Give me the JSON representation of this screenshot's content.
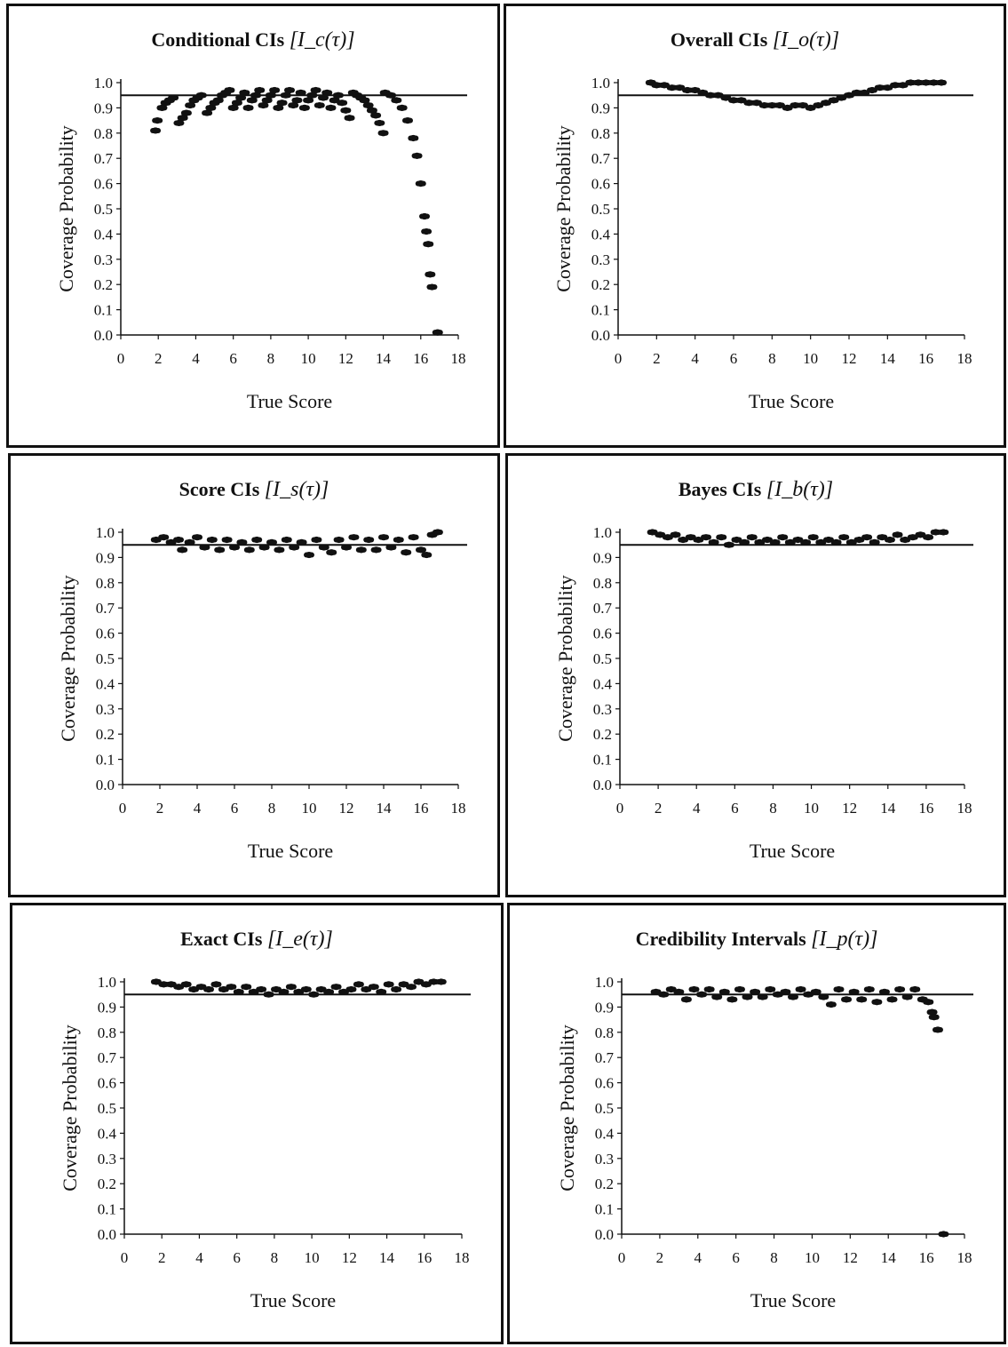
{
  "chart_data": [
    {
      "type": "scatter",
      "title": "Conditional CIs",
      "title_math": "[I_c(τ)]",
      "xlabel": "True Score",
      "ylabel": "Coverage Probability",
      "xlim": [
        0,
        18
      ],
      "ylim": [
        0,
        1
      ],
      "xticks": [
        "0",
        "2",
        "4",
        "6",
        "8",
        "10",
        "12",
        "14",
        "16",
        "18"
      ],
      "yticks": [
        "0.0",
        "0.1",
        "0.2",
        "0.3",
        "0.4",
        "0.5",
        "0.6",
        "0.7",
        "0.8",
        "0.9",
        "1.0"
      ],
      "reference_line": 0.95,
      "grid": false,
      "points": [
        [
          1.85,
          0.81
        ],
        [
          1.95,
          0.85
        ],
        [
          2.2,
          0.9
        ],
        [
          2.4,
          0.92
        ],
        [
          2.6,
          0.93
        ],
        [
          2.8,
          0.94
        ],
        [
          3.1,
          0.84
        ],
        [
          3.3,
          0.86
        ],
        [
          3.5,
          0.88
        ],
        [
          3.7,
          0.91
        ],
        [
          3.9,
          0.93
        ],
        [
          4.1,
          0.94
        ],
        [
          4.3,
          0.95
        ],
        [
          4.6,
          0.88
        ],
        [
          4.8,
          0.9
        ],
        [
          5.0,
          0.92
        ],
        [
          5.2,
          0.93
        ],
        [
          5.4,
          0.95
        ],
        [
          5.6,
          0.96
        ],
        [
          5.8,
          0.97
        ],
        [
          6.0,
          0.9
        ],
        [
          6.2,
          0.92
        ],
        [
          6.4,
          0.94
        ],
        [
          6.6,
          0.96
        ],
        [
          6.8,
          0.9
        ],
        [
          7.0,
          0.93
        ],
        [
          7.2,
          0.95
        ],
        [
          7.4,
          0.97
        ],
        [
          7.6,
          0.91
        ],
        [
          7.8,
          0.93
        ],
        [
          8.0,
          0.95
        ],
        [
          8.2,
          0.97
        ],
        [
          8.4,
          0.9
        ],
        [
          8.6,
          0.92
        ],
        [
          8.8,
          0.95
        ],
        [
          9.0,
          0.97
        ],
        [
          9.2,
          0.91
        ],
        [
          9.4,
          0.93
        ],
        [
          9.6,
          0.96
        ],
        [
          9.8,
          0.9
        ],
        [
          10.0,
          0.93
        ],
        [
          10.2,
          0.95
        ],
        [
          10.4,
          0.97
        ],
        [
          10.6,
          0.91
        ],
        [
          10.8,
          0.94
        ],
        [
          11.0,
          0.96
        ],
        [
          11.2,
          0.9
        ],
        [
          11.4,
          0.93
        ],
        [
          11.6,
          0.95
        ],
        [
          11.8,
          0.92
        ],
        [
          12.0,
          0.89
        ],
        [
          12.2,
          0.86
        ],
        [
          12.4,
          0.96
        ],
        [
          12.6,
          0.95
        ],
        [
          12.8,
          0.94
        ],
        [
          13.0,
          0.93
        ],
        [
          13.2,
          0.91
        ],
        [
          13.4,
          0.89
        ],
        [
          13.6,
          0.87
        ],
        [
          13.8,
          0.84
        ],
        [
          14.0,
          0.8
        ],
        [
          14.1,
          0.96
        ],
        [
          14.4,
          0.95
        ],
        [
          14.7,
          0.93
        ],
        [
          15.0,
          0.9
        ],
        [
          15.3,
          0.85
        ],
        [
          15.6,
          0.78
        ],
        [
          15.8,
          0.71
        ],
        [
          16.0,
          0.6
        ],
        [
          16.2,
          0.47
        ],
        [
          16.3,
          0.41
        ],
        [
          16.4,
          0.36
        ],
        [
          16.5,
          0.24
        ],
        [
          16.6,
          0.19
        ],
        [
          16.9,
          0.01
        ]
      ]
    },
    {
      "type": "scatter",
      "title": "Overall CIs",
      "title_math": "[I_o(τ)]",
      "xlabel": "True Score",
      "ylabel": "Coverage Probability",
      "xlim": [
        0,
        18
      ],
      "ylim": [
        0,
        1
      ],
      "xticks": [
        "0",
        "2",
        "4",
        "6",
        "8",
        "10",
        "12",
        "14",
        "16",
        "18"
      ],
      "yticks": [
        "0.0",
        "0.1",
        "0.2",
        "0.3",
        "0.4",
        "0.5",
        "0.6",
        "0.7",
        "0.8",
        "0.9",
        "1.0"
      ],
      "reference_line": 0.95,
      "grid": false,
      "points": [
        [
          1.7,
          1.0
        ],
        [
          2.0,
          0.99
        ],
        [
          2.4,
          0.99
        ],
        [
          2.8,
          0.98
        ],
        [
          3.2,
          0.98
        ],
        [
          3.6,
          0.97
        ],
        [
          4.0,
          0.97
        ],
        [
          4.4,
          0.96
        ],
        [
          4.8,
          0.95
        ],
        [
          5.2,
          0.95
        ],
        [
          5.6,
          0.94
        ],
        [
          6.0,
          0.93
        ],
        [
          6.4,
          0.93
        ],
        [
          6.8,
          0.92
        ],
        [
          7.2,
          0.92
        ],
        [
          7.6,
          0.91
        ],
        [
          8.0,
          0.91
        ],
        [
          8.4,
          0.91
        ],
        [
          8.8,
          0.9
        ],
        [
          9.2,
          0.91
        ],
        [
          9.6,
          0.91
        ],
        [
          10.0,
          0.9
        ],
        [
          10.4,
          0.91
        ],
        [
          10.8,
          0.92
        ],
        [
          11.2,
          0.93
        ],
        [
          11.6,
          0.94
        ],
        [
          12.0,
          0.95
        ],
        [
          12.4,
          0.96
        ],
        [
          12.8,
          0.96
        ],
        [
          13.2,
          0.97
        ],
        [
          13.6,
          0.98
        ],
        [
          14.0,
          0.98
        ],
        [
          14.4,
          0.99
        ],
        [
          14.8,
          0.99
        ],
        [
          15.2,
          1.0
        ],
        [
          15.6,
          1.0
        ],
        [
          16.0,
          1.0
        ],
        [
          16.4,
          1.0
        ],
        [
          16.8,
          1.0
        ]
      ]
    },
    {
      "type": "scatter",
      "title": "Score CIs",
      "title_math": "[I_s(τ)]",
      "xlabel": "True Score",
      "ylabel": "Coverage Probability",
      "xlim": [
        0,
        18
      ],
      "ylim": [
        0,
        1
      ],
      "xticks": [
        "0",
        "2",
        "4",
        "6",
        "8",
        "10",
        "12",
        "14",
        "16",
        "18"
      ],
      "yticks": [
        "0.0",
        "0.1",
        "0.2",
        "0.3",
        "0.4",
        "0.5",
        "0.6",
        "0.7",
        "0.8",
        "0.9",
        "1.0"
      ],
      "reference_line": 0.95,
      "grid": false,
      "points": [
        [
          1.8,
          0.97
        ],
        [
          2.2,
          0.98
        ],
        [
          2.6,
          0.96
        ],
        [
          3.0,
          0.97
        ],
        [
          3.2,
          0.93
        ],
        [
          3.6,
          0.96
        ],
        [
          4.0,
          0.98
        ],
        [
          4.4,
          0.94
        ],
        [
          4.8,
          0.97
        ],
        [
          5.2,
          0.93
        ],
        [
          5.6,
          0.97
        ],
        [
          6.0,
          0.94
        ],
        [
          6.4,
          0.96
        ],
        [
          6.8,
          0.93
        ],
        [
          7.2,
          0.97
        ],
        [
          7.6,
          0.94
        ],
        [
          8.0,
          0.96
        ],
        [
          8.4,
          0.93
        ],
        [
          8.8,
          0.97
        ],
        [
          9.2,
          0.94
        ],
        [
          9.6,
          0.96
        ],
        [
          10.0,
          0.91
        ],
        [
          10.4,
          0.97
        ],
        [
          10.8,
          0.94
        ],
        [
          11.2,
          0.92
        ],
        [
          11.6,
          0.97
        ],
        [
          12.0,
          0.94
        ],
        [
          12.4,
          0.98
        ],
        [
          12.8,
          0.93
        ],
        [
          13.2,
          0.97
        ],
        [
          13.6,
          0.93
        ],
        [
          14.0,
          0.98
        ],
        [
          14.4,
          0.94
        ],
        [
          14.8,
          0.97
        ],
        [
          15.2,
          0.92
        ],
        [
          15.6,
          0.98
        ],
        [
          16.0,
          0.93
        ],
        [
          16.3,
          0.91
        ],
        [
          16.6,
          0.99
        ],
        [
          16.9,
          1.0
        ]
      ]
    },
    {
      "type": "scatter",
      "title": "Bayes CIs",
      "title_math": "[I_b(τ)]",
      "xlabel": "True Score",
      "ylabel": "Coverage Probability",
      "xlim": [
        0,
        18
      ],
      "ylim": [
        0,
        1
      ],
      "xticks": [
        "0",
        "2",
        "4",
        "6",
        "8",
        "10",
        "12",
        "14",
        "16",
        "18"
      ],
      "yticks": [
        "0.0",
        "0.1",
        "0.2",
        "0.3",
        "0.4",
        "0.5",
        "0.6",
        "0.7",
        "0.8",
        "0.9",
        "1.0"
      ],
      "reference_line": 0.95,
      "grid": false,
      "points": [
        [
          1.7,
          1.0
        ],
        [
          2.1,
          0.99
        ],
        [
          2.5,
          0.98
        ],
        [
          2.9,
          0.99
        ],
        [
          3.3,
          0.97
        ],
        [
          3.7,
          0.98
        ],
        [
          4.1,
          0.97
        ],
        [
          4.5,
          0.98
        ],
        [
          4.9,
          0.96
        ],
        [
          5.3,
          0.98
        ],
        [
          5.7,
          0.95
        ],
        [
          6.1,
          0.97
        ],
        [
          6.5,
          0.96
        ],
        [
          6.9,
          0.98
        ],
        [
          7.3,
          0.96
        ],
        [
          7.7,
          0.97
        ],
        [
          8.1,
          0.96
        ],
        [
          8.5,
          0.98
        ],
        [
          8.9,
          0.96
        ],
        [
          9.3,
          0.97
        ],
        [
          9.7,
          0.96
        ],
        [
          10.1,
          0.98
        ],
        [
          10.5,
          0.96
        ],
        [
          10.9,
          0.97
        ],
        [
          11.3,
          0.96
        ],
        [
          11.7,
          0.98
        ],
        [
          12.1,
          0.96
        ],
        [
          12.5,
          0.97
        ],
        [
          12.9,
          0.98
        ],
        [
          13.3,
          0.96
        ],
        [
          13.7,
          0.98
        ],
        [
          14.1,
          0.97
        ],
        [
          14.5,
          0.99
        ],
        [
          14.9,
          0.97
        ],
        [
          15.3,
          0.98
        ],
        [
          15.7,
          0.99
        ],
        [
          16.1,
          0.98
        ],
        [
          16.5,
          1.0
        ],
        [
          16.9,
          1.0
        ]
      ]
    },
    {
      "type": "scatter",
      "title": "Exact CIs",
      "title_math": "[I_e(τ)]",
      "xlabel": "True Score",
      "ylabel": "Coverage Probability",
      "xlim": [
        0,
        18
      ],
      "ylim": [
        0,
        1
      ],
      "xticks": [
        "0",
        "2",
        "4",
        "6",
        "8",
        "10",
        "12",
        "14",
        "16",
        "18"
      ],
      "yticks": [
        "0.0",
        "0.1",
        "0.2",
        "0.3",
        "0.4",
        "0.5",
        "0.6",
        "0.7",
        "0.8",
        "0.9",
        "1.0"
      ],
      "reference_line": 0.95,
      "grid": false,
      "points": [
        [
          1.7,
          1.0
        ],
        [
          2.1,
          0.99
        ],
        [
          2.5,
          0.99
        ],
        [
          2.9,
          0.98
        ],
        [
          3.3,
          0.99
        ],
        [
          3.7,
          0.97
        ],
        [
          4.1,
          0.98
        ],
        [
          4.5,
          0.97
        ],
        [
          4.9,
          0.99
        ],
        [
          5.3,
          0.97
        ],
        [
          5.7,
          0.98
        ],
        [
          6.1,
          0.96
        ],
        [
          6.5,
          0.98
        ],
        [
          6.9,
          0.96
        ],
        [
          7.3,
          0.97
        ],
        [
          7.7,
          0.95
        ],
        [
          8.1,
          0.97
        ],
        [
          8.5,
          0.96
        ],
        [
          8.9,
          0.98
        ],
        [
          9.3,
          0.96
        ],
        [
          9.7,
          0.97
        ],
        [
          10.1,
          0.95
        ],
        [
          10.5,
          0.97
        ],
        [
          10.9,
          0.96
        ],
        [
          11.3,
          0.98
        ],
        [
          11.7,
          0.96
        ],
        [
          12.1,
          0.97
        ],
        [
          12.5,
          0.99
        ],
        [
          12.9,
          0.97
        ],
        [
          13.3,
          0.98
        ],
        [
          13.7,
          0.96
        ],
        [
          14.1,
          0.99
        ],
        [
          14.5,
          0.97
        ],
        [
          14.9,
          0.99
        ],
        [
          15.3,
          0.98
        ],
        [
          15.7,
          1.0
        ],
        [
          16.1,
          0.99
        ],
        [
          16.5,
          1.0
        ],
        [
          16.9,
          1.0
        ]
      ]
    },
    {
      "type": "scatter",
      "title": "Credibility Intervals",
      "title_math": "[I_p(τ)]",
      "xlabel": "True Score",
      "ylabel": "Coverage Probability",
      "xlim": [
        0,
        18
      ],
      "ylim": [
        0,
        1
      ],
      "xticks": [
        "0",
        "2",
        "4",
        "6",
        "8",
        "10",
        "12",
        "14",
        "16",
        "18"
      ],
      "yticks": [
        "0.0",
        "0.1",
        "0.2",
        "0.3",
        "0.4",
        "0.5",
        "0.6",
        "0.7",
        "0.8",
        "0.9",
        "1.0"
      ],
      "reference_line": 0.95,
      "grid": false,
      "points": [
        [
          1.8,
          0.96
        ],
        [
          2.2,
          0.95
        ],
        [
          2.6,
          0.97
        ],
        [
          3.0,
          0.96
        ],
        [
          3.4,
          0.93
        ],
        [
          3.8,
          0.97
        ],
        [
          4.2,
          0.95
        ],
        [
          4.6,
          0.97
        ],
        [
          5.0,
          0.94
        ],
        [
          5.4,
          0.96
        ],
        [
          5.8,
          0.93
        ],
        [
          6.2,
          0.97
        ],
        [
          6.6,
          0.94
        ],
        [
          7.0,
          0.96
        ],
        [
          7.4,
          0.94
        ],
        [
          7.8,
          0.97
        ],
        [
          8.2,
          0.95
        ],
        [
          8.6,
          0.96
        ],
        [
          9.0,
          0.94
        ],
        [
          9.4,
          0.97
        ],
        [
          9.8,
          0.95
        ],
        [
          10.2,
          0.96
        ],
        [
          10.6,
          0.94
        ],
        [
          11.0,
          0.91
        ],
        [
          11.4,
          0.97
        ],
        [
          11.8,
          0.93
        ],
        [
          12.2,
          0.96
        ],
        [
          12.6,
          0.93
        ],
        [
          13.0,
          0.97
        ],
        [
          13.4,
          0.92
        ],
        [
          13.8,
          0.96
        ],
        [
          14.2,
          0.93
        ],
        [
          14.6,
          0.97
        ],
        [
          15.0,
          0.94
        ],
        [
          15.4,
          0.97
        ],
        [
          15.8,
          0.93
        ],
        [
          16.1,
          0.92
        ],
        [
          16.3,
          0.88
        ],
        [
          16.4,
          0.86
        ],
        [
          16.6,
          0.81
        ],
        [
          16.9,
          0.0
        ]
      ]
    }
  ]
}
